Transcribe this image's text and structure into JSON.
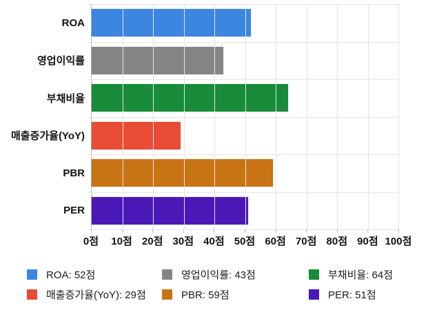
{
  "chart_data": {
    "type": "bar",
    "orientation": "horizontal",
    "title": "",
    "unit": "점",
    "xlim": [
      0,
      100
    ],
    "grid": true,
    "ticks": [
      0,
      10,
      20,
      30,
      40,
      50,
      60,
      70,
      80,
      90,
      100
    ],
    "tick_labels": [
      "0점",
      "10점",
      "20점",
      "30점",
      "40점",
      "50점",
      "60점",
      "70점",
      "80점",
      "90점",
      "100점"
    ],
    "categories": [
      "ROA",
      "영업이익률",
      "부채비율",
      "매출증가율(YoY)",
      "PBR",
      "PER"
    ],
    "values": [
      52,
      43,
      64,
      29,
      59,
      51
    ],
    "colors": [
      "#3b86e0",
      "#858585",
      "#188c38",
      "#e94c35",
      "#c87414",
      "#4b18b8"
    ],
    "legend": {
      "position": "bottom",
      "items": [
        {
          "label": "ROA: 52점",
          "color": "#3b86e0"
        },
        {
          "label": "영업이익률: 43점",
          "color": "#858585"
        },
        {
          "label": "부채비율: 64점",
          "color": "#188c38"
        },
        {
          "label": "매출증가율(YoY): 29점",
          "color": "#e94c35"
        },
        {
          "label": "PBR: 59점",
          "color": "#c87414"
        },
        {
          "label": "PER: 51점",
          "color": "#4b18b8"
        }
      ]
    }
  }
}
